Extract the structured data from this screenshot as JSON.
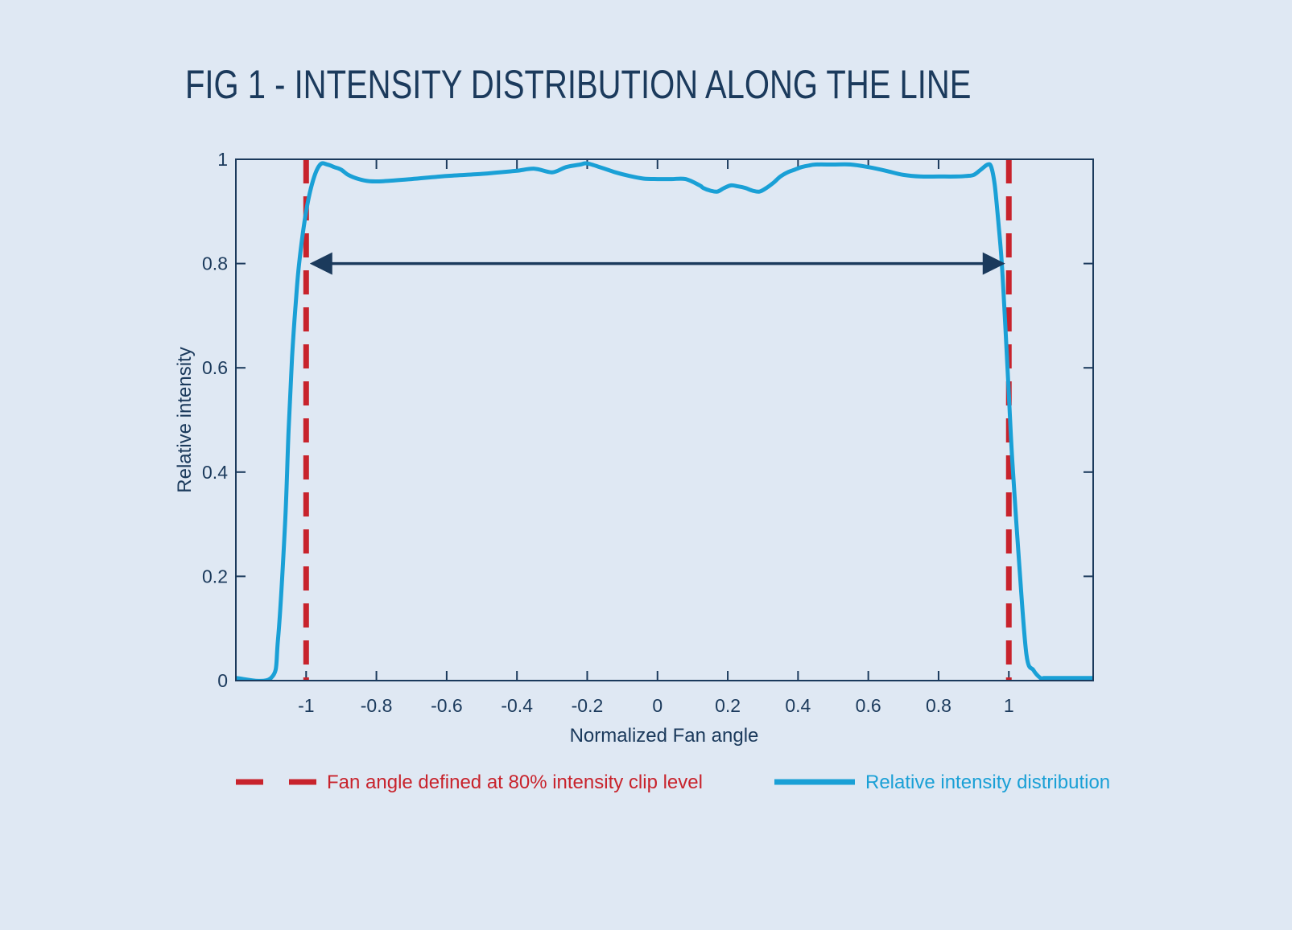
{
  "title": "FIG 1 - INTENSITY DISTRIBUTION ALONG THE LINE",
  "colors": {
    "background": "#dfe8f3",
    "axis": "#1b3a5c",
    "curve": "#1aa0d6",
    "clip": "#c8232c",
    "arrow": "#1b3a5c"
  },
  "chart_data": {
    "type": "line",
    "title": "FIG 1 - INTENSITY DISTRIBUTION ALONG THE LINE",
    "xlabel": "Normalized Fan angle",
    "ylabel": "Relative intensity",
    "xlim": [
      -1.2,
      1.24
    ],
    "ylim": [
      0,
      1
    ],
    "xticks": [
      -1,
      -0.8,
      -0.6,
      -0.4,
      -0.2,
      0,
      0.2,
      0.4,
      0.6,
      0.8,
      1
    ],
    "xtick_labels": [
      "-1",
      "-0.8",
      "-0.6",
      "-0.4",
      "-0.2",
      "0",
      "0.2",
      "0.4",
      "0.6",
      "0.8",
      "1"
    ],
    "yticks": [
      0,
      0.2,
      0.4,
      0.6,
      0.8,
      1
    ],
    "ytick_labels": [
      "0",
      "0.2",
      "0.4",
      "0.6",
      "0.8",
      "1"
    ],
    "series": [
      {
        "name": "Relative intensity distribution",
        "style": "solid",
        "x": [
          -1.2,
          -1.1,
          -1.08,
          -1.06,
          -1.05,
          -1.04,
          -1.03,
          -1.02,
          -1.0,
          -0.98,
          -0.96,
          -0.94,
          -0.92,
          -0.9,
          -0.88,
          -0.85,
          -0.82,
          -0.78,
          -0.7,
          -0.6,
          -0.5,
          -0.45,
          -0.4,
          -0.35,
          -0.3,
          -0.26,
          -0.22,
          -0.2,
          -0.16,
          -0.12,
          -0.08,
          -0.04,
          0.0,
          0.04,
          0.08,
          0.12,
          0.13,
          0.15,
          0.17,
          0.19,
          0.21,
          0.23,
          0.25,
          0.27,
          0.29,
          0.31,
          0.33,
          0.35,
          0.37,
          0.39,
          0.41,
          0.43,
          0.45,
          0.5,
          0.55,
          0.6,
          0.65,
          0.7,
          0.75,
          0.8,
          0.85,
          0.88,
          0.9,
          0.92,
          0.94,
          0.95,
          0.96,
          0.97,
          0.98,
          0.99,
          1.0,
          1.01,
          1.03,
          1.05,
          1.07,
          1.09,
          1.1,
          1.12,
          1.24
        ],
        "y": [
          0.005,
          0.005,
          0.08,
          0.3,
          0.48,
          0.62,
          0.72,
          0.8,
          0.9,
          0.96,
          0.99,
          0.99,
          0.985,
          0.98,
          0.97,
          0.962,
          0.958,
          0.958,
          0.962,
          0.968,
          0.972,
          0.975,
          0.978,
          0.982,
          0.975,
          0.985,
          0.99,
          0.992,
          0.984,
          0.975,
          0.968,
          0.963,
          0.962,
          0.962,
          0.962,
          0.95,
          0.945,
          0.94,
          0.938,
          0.945,
          0.95,
          0.948,
          0.945,
          0.94,
          0.938,
          0.945,
          0.955,
          0.967,
          0.975,
          0.98,
          0.985,
          0.988,
          0.99,
          0.99,
          0.99,
          0.985,
          0.978,
          0.97,
          0.967,
          0.967,
          0.967,
          0.968,
          0.97,
          0.98,
          0.99,
          0.985,
          0.95,
          0.88,
          0.8,
          0.68,
          0.55,
          0.42,
          0.22,
          0.05,
          0.02,
          0.005,
          0.005,
          0.005,
          0.005
        ]
      },
      {
        "name": "Fan angle defined at 80% intensity clip level",
        "style": "dashed",
        "vlines": [
          -1,
          1
        ]
      }
    ],
    "annotations": [
      {
        "type": "double-arrow",
        "from": [
          -1,
          0.8
        ],
        "to": [
          1,
          0.8
        ]
      }
    ],
    "legend": {
      "placement": "bottom",
      "items": [
        {
          "label": "Fan angle defined at 80% intensity clip level",
          "style": "dashed"
        },
        {
          "label": "Relative intensity distribution",
          "style": "solid"
        }
      ]
    }
  }
}
